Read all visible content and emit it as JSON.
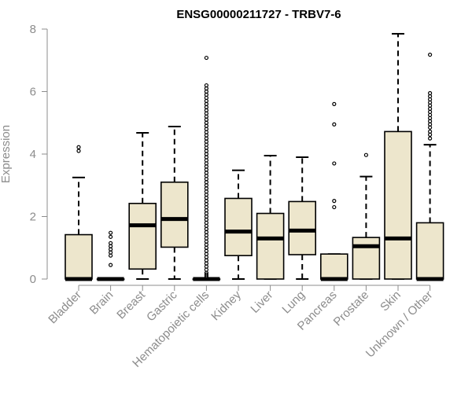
{
  "chart_data": {
    "type": "boxplot",
    "title": "ENSG00000211727 - TRBV7-6",
    "xlabel": "",
    "ylabel": "Expression",
    "ylim": [
      0,
      8
    ],
    "yticks": [
      0,
      2,
      4,
      6,
      8
    ],
    "grid": false,
    "colors": {
      "box_fill": "#ede6cc",
      "stroke": "#000000",
      "axis": "#8c8c8c"
    },
    "categories": [
      "Bladder",
      "Brain",
      "Breast",
      "Gastric",
      "Hematopoietic cells",
      "Kidney",
      "Liver",
      "Lung",
      "Pancreas",
      "Prostate",
      "Skin",
      "Unknown / Other"
    ],
    "boxes": [
      {
        "name": "Bladder",
        "whisker_low": 0,
        "q1": 0,
        "median": 0,
        "q3": 1.42,
        "whisker_high": 3.25,
        "outliers": [
          4.1,
          4.22
        ]
      },
      {
        "name": "Brain",
        "whisker_low": 0,
        "q1": 0,
        "median": 0,
        "q3": 0,
        "whisker_high": 0,
        "outliers": [
          0.45,
          0.75,
          0.85,
          0.95,
          1.05,
          1.15,
          1.35,
          1.48
        ]
      },
      {
        "name": "Breast",
        "whisker_low": 0,
        "q1": 0.32,
        "median": 1.72,
        "q3": 2.42,
        "whisker_high": 4.68,
        "outliers": []
      },
      {
        "name": "Gastric",
        "whisker_low": 0,
        "q1": 1.02,
        "median": 1.92,
        "q3": 3.1,
        "whisker_high": 4.88,
        "outliers": []
      },
      {
        "name": "Hematopoietic cells",
        "whisker_low": 0,
        "q1": 0,
        "median": 0,
        "q3": 0,
        "whisker_high": 0,
        "outliers": [
          0.05,
          0.1,
          0.15,
          0.2,
          0.3,
          0.4,
          0.5,
          0.6,
          0.7,
          0.8,
          0.9,
          1.0,
          1.1,
          1.2,
          1.3,
          1.4,
          1.5,
          1.6,
          1.7,
          1.8,
          1.9,
          2.0,
          2.1,
          2.2,
          2.3,
          2.4,
          2.5,
          2.6,
          2.7,
          2.8,
          2.9,
          3.0,
          3.1,
          3.2,
          3.3,
          3.4,
          3.5,
          3.6,
          3.7,
          3.8,
          3.9,
          4.0,
          4.1,
          4.2,
          4.3,
          4.4,
          4.5,
          4.6,
          4.7,
          4.8,
          4.9,
          5.0,
          5.1,
          5.2,
          5.3,
          5.4,
          5.5,
          5.6,
          5.7,
          5.8,
          5.9,
          6.0,
          6.1,
          6.2,
          7.08
        ]
      },
      {
        "name": "Kidney",
        "whisker_low": 0,
        "q1": 0.75,
        "median": 1.52,
        "q3": 2.58,
        "whisker_high": 3.48,
        "outliers": []
      },
      {
        "name": "Liver",
        "whisker_low": 0,
        "q1": 0,
        "median": 1.3,
        "q3": 2.1,
        "whisker_high": 3.95,
        "outliers": []
      },
      {
        "name": "Lung",
        "whisker_low": 0,
        "q1": 0.78,
        "median": 1.55,
        "q3": 2.48,
        "whisker_high": 3.9,
        "outliers": []
      },
      {
        "name": "Pancreas",
        "whisker_low": 0,
        "q1": 0,
        "median": 0,
        "q3": 0.8,
        "whisker_high": 0.8,
        "outliers": [
          2.3,
          2.5,
          3.7,
          4.95,
          5.6
        ]
      },
      {
        "name": "Prostate",
        "whisker_low": 0,
        "q1": 0,
        "median": 1.05,
        "q3": 1.33,
        "whisker_high": 3.28,
        "outliers": [
          3.97
        ]
      },
      {
        "name": "Skin",
        "whisker_low": 0,
        "q1": 0,
        "median": 1.3,
        "q3": 4.72,
        "whisker_high": 7.85,
        "outliers": []
      },
      {
        "name": "Unknown / Other",
        "whisker_low": 0,
        "q1": 0,
        "median": 0,
        "q3": 1.8,
        "whisker_high": 4.3,
        "outliers": [
          4.5,
          4.62,
          4.72,
          4.85,
          4.95,
          5.05,
          5.15,
          5.25,
          5.35,
          5.45,
          5.55,
          5.65,
          5.75,
          5.85,
          5.95,
          7.18
        ]
      }
    ]
  }
}
